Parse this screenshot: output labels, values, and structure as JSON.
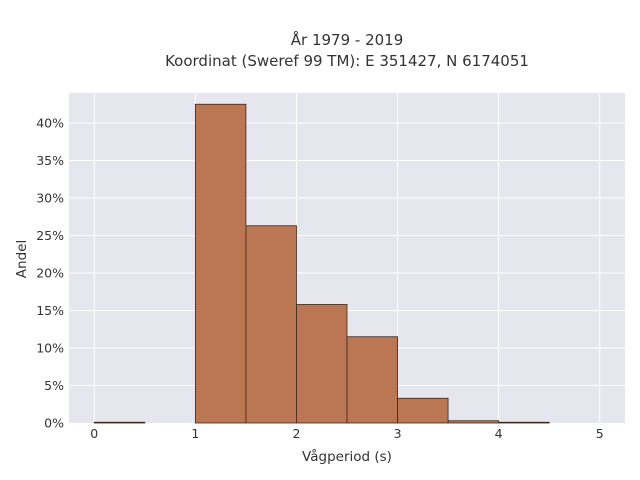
{
  "chart_data": {
    "type": "bar",
    "title_lines": [
      "År 1979 - 2019",
      "Koordinat (Sweref 99 TM): E 351427, N 6174051"
    ],
    "xlabel": "Vågperiod (s)",
    "ylabel": "Andel",
    "xlim": [
      -0.25,
      5.25
    ],
    "ylim": [
      0,
      44
    ],
    "xticks": [
      0,
      1,
      2,
      3,
      4,
      5
    ],
    "xtick_labels": [
      "0",
      "1",
      "2",
      "3",
      "4",
      "5"
    ],
    "yticks": [
      0,
      5,
      10,
      15,
      20,
      25,
      30,
      35,
      40
    ],
    "ytick_labels": [
      "0%",
      "5%",
      "10%",
      "15%",
      "20%",
      "25%",
      "30%",
      "35%",
      "40%"
    ],
    "bin_width": 0.5,
    "bins": [
      {
        "start": 0.0,
        "value": 0.1
      },
      {
        "start": 0.5,
        "value": 0.0
      },
      {
        "start": 1.0,
        "value": 42.5
      },
      {
        "start": 1.5,
        "value": 26.3
      },
      {
        "start": 2.0,
        "value": 15.8
      },
      {
        "start": 2.5,
        "value": 11.5
      },
      {
        "start": 3.0,
        "value": 3.3
      },
      {
        "start": 3.5,
        "value": 0.3
      },
      {
        "start": 4.0,
        "value": 0.1
      },
      {
        "start": 4.5,
        "value": 0.0
      }
    ],
    "grid": true,
    "colors": {
      "plot_bg": "#e6e6ef",
      "grid": "#ffffff",
      "bar_fill": "#bb7753",
      "bar_edge": "#3d2518"
    }
  }
}
